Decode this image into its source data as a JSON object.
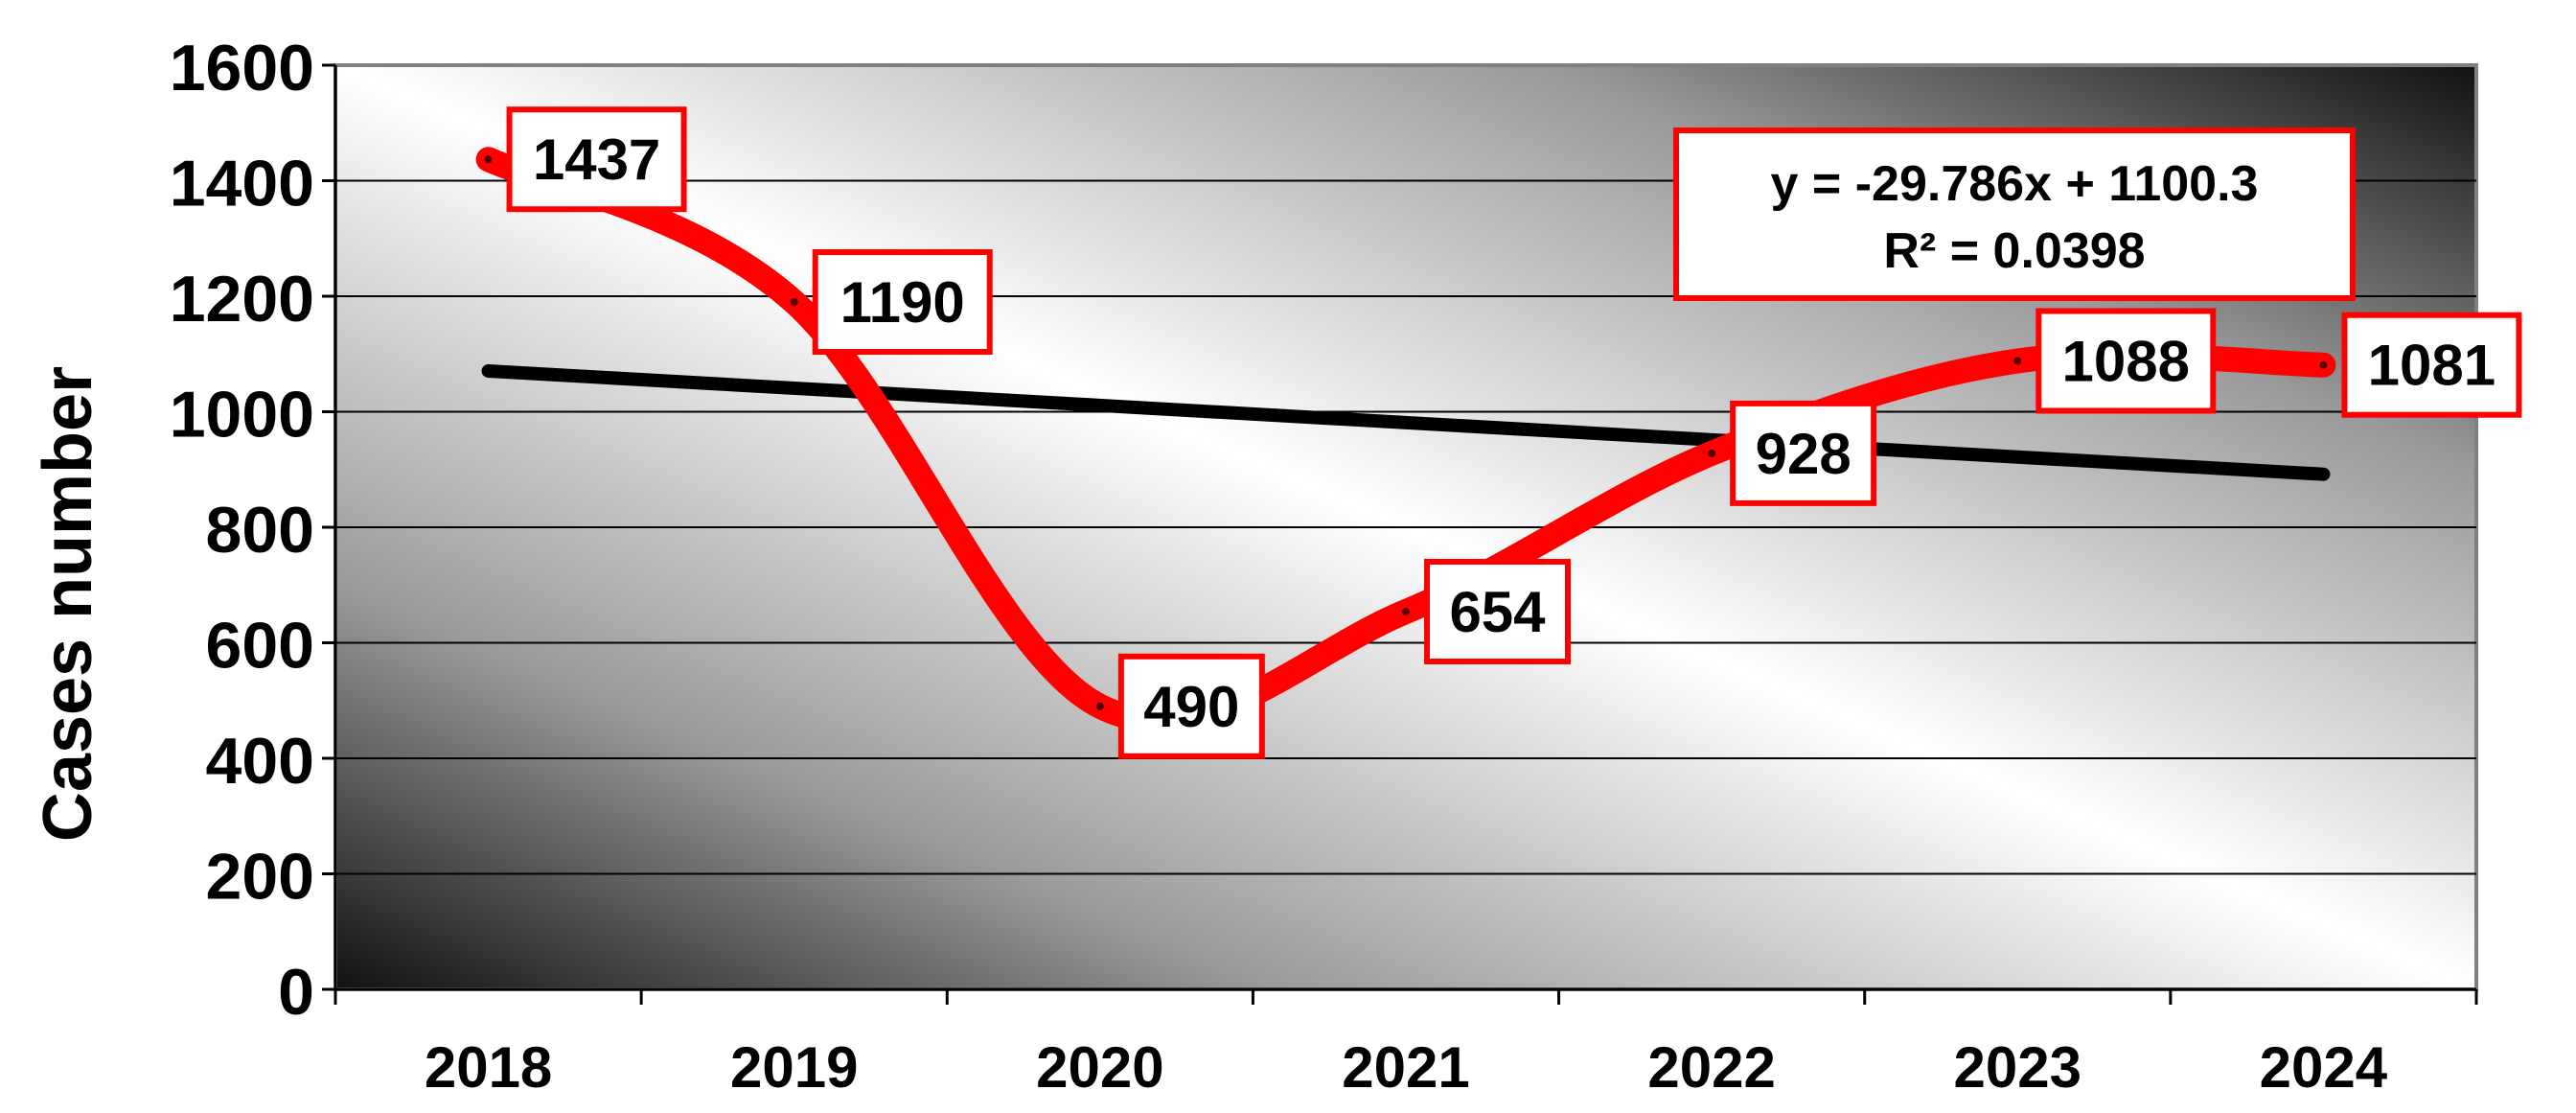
{
  "chart_data": {
    "type": "line",
    "title": "",
    "xlabel": "",
    "ylabel": "Cases number",
    "categories": [
      "2018",
      "2019",
      "2020",
      "2021",
      "2022",
      "2023",
      "2024"
    ],
    "ylim": [
      0,
      1600
    ],
    "yticks": [
      "0",
      "200",
      "400",
      "600",
      "800",
      "1000",
      "1200",
      "1400",
      "1600"
    ],
    "grid": "horizontal",
    "series": [
      {
        "values": [
          1437,
          1190,
          490,
          654,
          928,
          1088,
          1081
        ],
        "data_labels": [
          "1437",
          "1190",
          "490",
          "654",
          "928",
          "1088",
          "1081"
        ],
        "color": "#ff0000",
        "smooth": true
      }
    ],
    "trendline": {
      "type": "linear",
      "slope": -29.786,
      "intercept": 1100.3,
      "equation_text": "y = -29.786x + 1100.3",
      "r2_text": "R² = 0.0398",
      "color": "#000000"
    }
  }
}
